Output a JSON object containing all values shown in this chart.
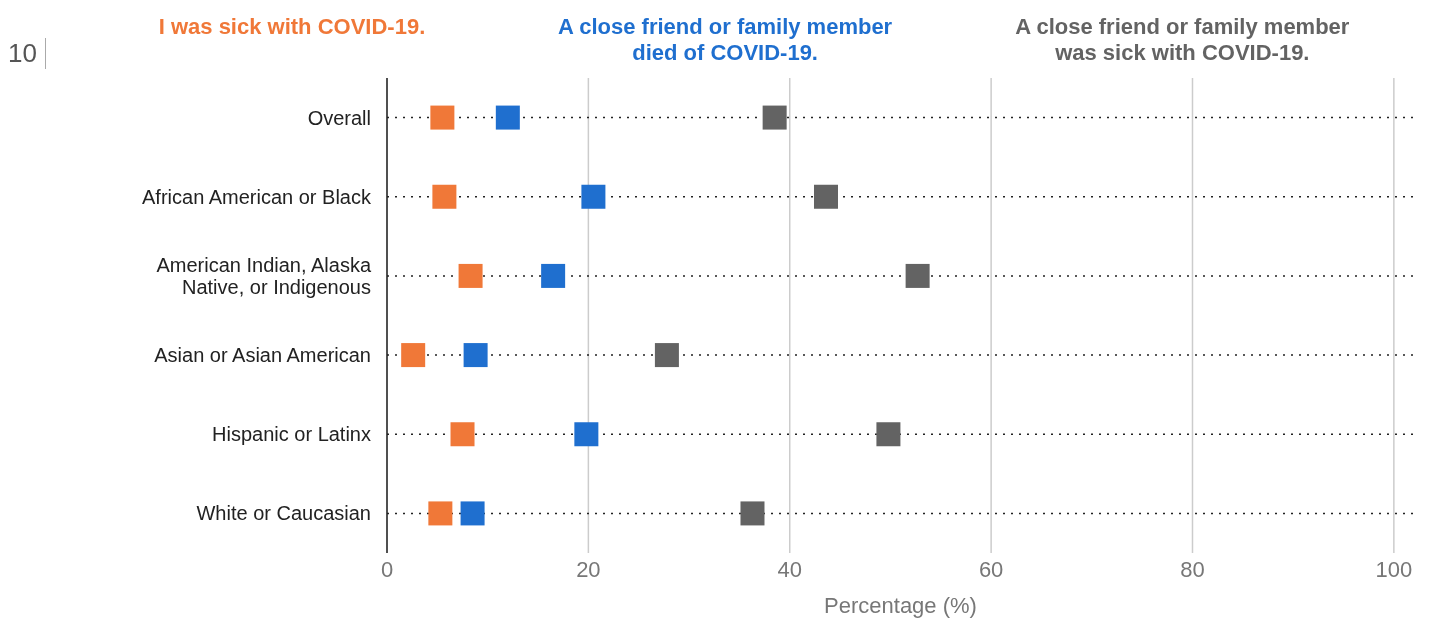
{
  "chart_data": {
    "type": "scatter",
    "xlabel": "Percentage (%)",
    "orientation": "horizontal",
    "categories": [
      "Overall",
      "African American or Black",
      "American Indian, Alaska Native, or Indigenous",
      "Asian or Asian American",
      "Hispanic or Latinx",
      "White or Caucasian"
    ],
    "series": [
      {
        "name": "I was sick with COVID-19.",
        "color": "#f07838",
        "values": [
          5.5,
          5.7,
          8.3,
          2.6,
          7.5,
          5.3
        ]
      },
      {
        "name": "A close friend or family member died of COVID-19.",
        "color": "#1f6fcf",
        "values": [
          12,
          20.5,
          16.5,
          8.8,
          19.8,
          8.5
        ]
      },
      {
        "name": "A close friend or family member was sick with COVID-19.",
        "color": "#636363",
        "values": [
          38.5,
          43.6,
          52.7,
          27.8,
          49.8,
          36.3
        ]
      }
    ],
    "xlim": [
      0,
      102
    ],
    "xticks": [
      0,
      20,
      40,
      60,
      80,
      100
    ],
    "grid": true,
    "legend": "top",
    "marker": "square",
    "annotations": [
      "10"
    ]
  }
}
